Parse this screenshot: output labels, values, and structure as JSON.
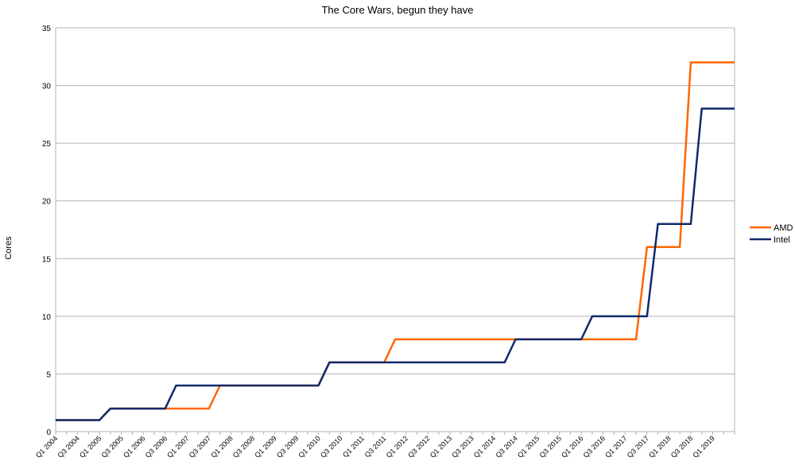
{
  "chart_data": {
    "type": "line",
    "title": "The Core Wars, begun they have",
    "xlabel": "",
    "ylabel": "Cores",
    "ylim": [
      0,
      35
    ],
    "yticks": [
      0,
      5,
      10,
      15,
      20,
      25,
      30,
      35
    ],
    "grid": true,
    "legend_position": "right",
    "x": [
      "Q1 2004",
      "Q2 2004",
      "Q3 2004",
      "Q4 2004",
      "Q1 2005",
      "Q2 2005",
      "Q3 2005",
      "Q4 2005",
      "Q1 2006",
      "Q2 2006",
      "Q3 2006",
      "Q4 2006",
      "Q1 2007",
      "Q2 2007",
      "Q3 2007",
      "Q4 2007",
      "Q1 2008",
      "Q2 2008",
      "Q3 2008",
      "Q4 2008",
      "Q1 2009",
      "Q2 2009",
      "Q3 2009",
      "Q4 2009",
      "Q1 2010",
      "Q2 2010",
      "Q3 2010",
      "Q4 2010",
      "Q1 2011",
      "Q2 2011",
      "Q3 2011",
      "Q4 2011",
      "Q1 2012",
      "Q2 2012",
      "Q3 2012",
      "Q4 2012",
      "Q1 2013",
      "Q2 2013",
      "Q3 2013",
      "Q4 2013",
      "Q1 2014",
      "Q2 2014",
      "Q3 2014",
      "Q4 2014",
      "Q1 2015",
      "Q2 2015",
      "Q3 2015",
      "Q4 2015",
      "Q1 2016",
      "Q2 2016",
      "Q3 2016",
      "Q4 2016",
      "Q1 2017",
      "Q2 2017",
      "Q3 2017",
      "Q4 2017",
      "Q1 2018",
      "Q2 2018",
      "Q3 2018",
      "Q4 2018",
      "Q1 2019",
      "Q2 2019",
      "Q3 2019"
    ],
    "x_tick_labels": [
      "Q1 2004",
      "Q3 2004",
      "Q1 2005",
      "Q3 2005",
      "Q1 2006",
      "Q3 2006",
      "Q1 2007",
      "Q3 2007",
      "Q1 2008",
      "Q3 2008",
      "Q1 2009",
      "Q3 2009",
      "Q1 2010",
      "Q3 2010",
      "Q1 2011",
      "Q3 2011",
      "Q1 2012",
      "Q3 2012",
      "Q1 2013",
      "Q3 2013",
      "Q1 2014",
      "Q3 2014",
      "Q1 2015",
      "Q3 2015",
      "Q1 2016",
      "Q3 2016",
      "Q1 2017",
      "Q3 2017",
      "Q1 2018",
      "Q3 2018",
      "Q1 2019"
    ],
    "series": [
      {
        "name": "AMD",
        "color": "#ff6600",
        "values": [
          1,
          1,
          1,
          1,
          1,
          2,
          2,
          2,
          2,
          2,
          2,
          2,
          2,
          2,
          2,
          4,
          4,
          4,
          4,
          4,
          4,
          4,
          4,
          4,
          4,
          6,
          6,
          6,
          6,
          6,
          6,
          8,
          8,
          8,
          8,
          8,
          8,
          8,
          8,
          8,
          8,
          8,
          8,
          8,
          8,
          8,
          8,
          8,
          8,
          8,
          8,
          8,
          8,
          8,
          16,
          16,
          16,
          16,
          32,
          32,
          32,
          32,
          32
        ]
      },
      {
        "name": "Intel",
        "color": "#0f2a6b",
        "values": [
          1,
          1,
          1,
          1,
          1,
          2,
          2,
          2,
          2,
          2,
          2,
          4,
          4,
          4,
          4,
          4,
          4,
          4,
          4,
          4,
          4,
          4,
          4,
          4,
          4,
          6,
          6,
          6,
          6,
          6,
          6,
          6,
          6,
          6,
          6,
          6,
          6,
          6,
          6,
          6,
          6,
          6,
          8,
          8,
          8,
          8,
          8,
          8,
          8,
          10,
          10,
          10,
          10,
          10,
          10,
          18,
          18,
          18,
          18,
          28,
          28,
          28,
          28
        ]
      }
    ]
  }
}
